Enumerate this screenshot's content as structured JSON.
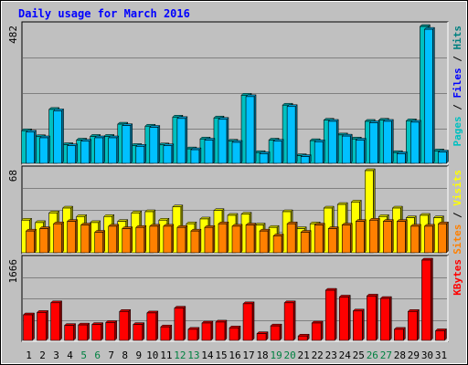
{
  "chart_data": {
    "type": "bar",
    "title": "Daily usage for March 2016",
    "categories": [
      "1",
      "2",
      "3",
      "4",
      "5",
      "6",
      "7",
      "8",
      "9",
      "10",
      "11",
      "12",
      "13",
      "14",
      "15",
      "16",
      "17",
      "18",
      "19",
      "20",
      "21",
      "22",
      "23",
      "24",
      "25",
      "26",
      "27",
      "28",
      "29",
      "30",
      "31"
    ],
    "weekend_days": [
      "5",
      "6",
      "12",
      "13",
      "19",
      "20",
      "26",
      "27"
    ],
    "panels": [
      {
        "id": "hits_files_pages",
        "ylim": [
          0,
          482
        ],
        "max_label": "482",
        "ylabel_parts": [
          {
            "text": "Pages",
            "color": "#00c0c0"
          },
          {
            "text": " / ",
            "color": "#000000"
          },
          {
            "text": "Files",
            "color": "#0000ff"
          },
          {
            "text": " / ",
            "color": "#000000"
          },
          {
            "text": "Hits",
            "color": "#008080"
          }
        ],
        "series": [
          {
            "name": "Hits",
            "color": "#00c0c0",
            "values": [
              115,
              94,
              190,
              66,
              82,
              95,
              95,
              138,
              63,
              131,
              65,
              163,
              51,
              86,
              160,
              78,
              240,
              38,
              82,
              205,
              27,
              80,
              152,
              100,
              86,
              148,
              152,
              38,
              150,
              482,
              44
            ]
          },
          {
            "name": "Files",
            "color": "#00c0ff",
            "values": [
              110,
              90,
              185,
              62,
              78,
              90,
              90,
              133,
              60,
              127,
              62,
              158,
              48,
              82,
              155,
              74,
              235,
              34,
              78,
              200,
              24,
              76,
              148,
              96,
              82,
              143,
              148,
              34,
              145,
              472,
              40
            ]
          }
        ]
      },
      {
        "id": "visits_sites",
        "ylim": [
          0,
          68
        ],
        "max_label": "68",
        "ylabel_parts": [
          {
            "text": "Sites",
            "color": "#ff8000"
          },
          {
            "text": " / ",
            "color": "#000000"
          },
          {
            "text": "Visits",
            "color": "#ffff00"
          }
        ],
        "series": [
          {
            "name": "Visits",
            "color": "#ffff00",
            "values": [
              27,
              25,
              33,
              37,
              30,
              25,
              30,
              26,
              33,
              34,
              27,
              38,
              24,
              28,
              35,
              31,
              32,
              23,
              21,
              34,
              20,
              24,
              37,
              40,
              42,
              68,
              30,
              37,
              29,
              31,
              29
            ]
          },
          {
            "name": "Sites",
            "color": "#ff8000",
            "values": [
              18,
              20,
              24,
              26,
              23,
              17,
              22,
              20,
              21,
              22,
              22,
              21,
              18,
              21,
              24,
              22,
              23,
              18,
              14,
              24,
              17,
              23,
              20,
              23,
              26,
              27,
              26,
              26,
              22,
              22,
              24
            ]
          }
        ]
      },
      {
        "id": "kbytes",
        "ylim": [
          0,
          1666
        ],
        "max_label": "1666",
        "ylabel_parts": [
          {
            "text": "KBytes",
            "color": "#ff0000"
          }
        ],
        "series": [
          {
            "name": "KBytes",
            "color": "#ff0000",
            "values": [
              530,
              580,
              780,
              310,
              320,
              330,
              370,
              600,
              330,
              570,
              280,
              670,
              230,
              360,
              380,
              260,
              760,
              140,
              300,
              780,
              90,
              360,
              1040,
              900,
              610,
              920,
              870,
              230,
              600,
              1666,
              200
            ]
          }
        ]
      }
    ]
  }
}
